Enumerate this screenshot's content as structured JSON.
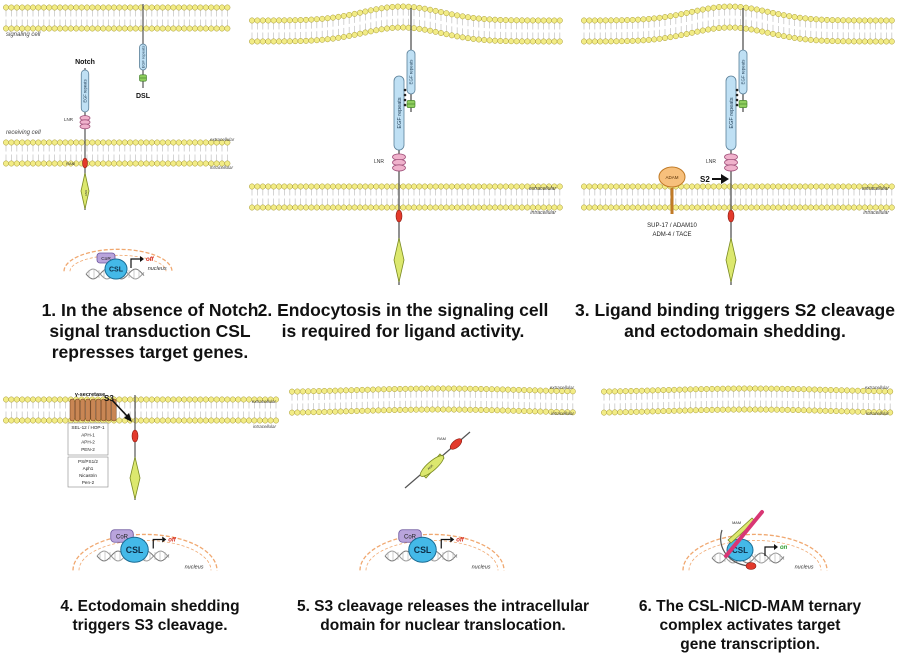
{
  "panels": [
    {
      "caption": [
        "1. In the absence of Notch",
        "signal transduction CSL",
        "represses target genes."
      ],
      "labels": {
        "signaling_cell": "signaling cell",
        "receiving_cell": "receiving cell",
        "notch": "Notch",
        "dsl": "DSL",
        "egf_notch": "EGF repeats",
        "egf_dsl": "EGF repeats",
        "lnr": "LNR",
        "ram": "RAM",
        "ank": "ANK",
        "extracellular": "extracellular",
        "intracellular": "intracellular",
        "corepressor": "CoR",
        "csl": "CSL",
        "off": "off",
        "nucleus": "nucleus"
      }
    },
    {
      "caption": [
        "2. Endocytosis in the signaling cell",
        "is required for ligand activity."
      ],
      "labels": {
        "egf_notch": "EGF repeats",
        "egf_dsl": "EGF repeats",
        "lnr": "LNR",
        "extracellular": "extracellular",
        "intracellular": "intracellular"
      }
    },
    {
      "caption": [
        "3. Ligand binding triggers S2 cleavage",
        "and ectodomain shedding."
      ],
      "labels": {
        "egf_notch": "EGF repeats",
        "egf_dsl": "EGF repeats",
        "lnr": "LNR",
        "adam": "ADAM",
        "s2": "S2",
        "protease_line1": "SUP-17 / ADAM10",
        "protease_line2": "ADM-4 / TACE",
        "extracellular": "extracellular",
        "intracellular": "intracellular"
      }
    },
    {
      "caption": [
        "4. Ectodomain shedding",
        "triggers S3 cleavage."
      ],
      "labels": {
        "gamma_secretase": "γ-secretase",
        "s3": "S3",
        "box1": [
          "SEL-12 / HOP-1",
          "APH-1",
          "APH-2",
          "PEN-2"
        ],
        "box2": [
          "PS/PS1/2",
          "Aph1",
          "Nicastrin",
          "Pen-2"
        ],
        "extracellular": "extracellular",
        "intracellular": "intracellular",
        "corepressor": "CoR",
        "csl": "CSL",
        "off": "off",
        "nucleus": "nucleus"
      }
    },
    {
      "caption": [
        "5. S3 cleavage releases the intracellular",
        "domain for nuclear translocation."
      ],
      "labels": {
        "nicd_ram": "RAM",
        "nicd_ank": "ANK",
        "extracellular": "extracellular",
        "intracellular": "intracellular",
        "corepressor": "CoR",
        "csl": "CSL",
        "off": "off",
        "nucleus": "nucleus"
      }
    },
    {
      "caption": [
        "6. The CSL-NICD-MAM ternary",
        "complex activates target",
        "gene transcription."
      ],
      "labels": {
        "mam": "MAM",
        "csl": "CSL",
        "on": "on",
        "extracellular": "extracellular",
        "intracellular": "intracellular",
        "nucleus": "nucleus"
      }
    }
  ],
  "colors": {
    "head": "#f2ec86",
    "head_stroke": "#a89a34",
    "tail": "#c9c9c9",
    "egf_fill": "#bfe0f4",
    "egf_stroke": "#5a7f98",
    "lnr_fill": "#f0b2cc",
    "lnr_stroke": "#a0507a",
    "ram_fill": "#e33a2c",
    "ank_fill": "#dce86e",
    "ank_stroke": "#7a8a22",
    "dsl_tm_fill": "#8fce5e",
    "csl_fill": "#44b9e8",
    "csl_stroke": "#1a6c94",
    "cor_fill": "#b9a4dc",
    "cor_stroke": "#6a539c",
    "nucleus_stroke": "#f0a870",
    "off_text": "#d62a1a",
    "on_text": "#2a9a2a",
    "adam_fill": "#f7c07c",
    "adam_stroke": "#c07a26",
    "gamma_fill": "#c98654",
    "mam_fill": "#d83674"
  }
}
